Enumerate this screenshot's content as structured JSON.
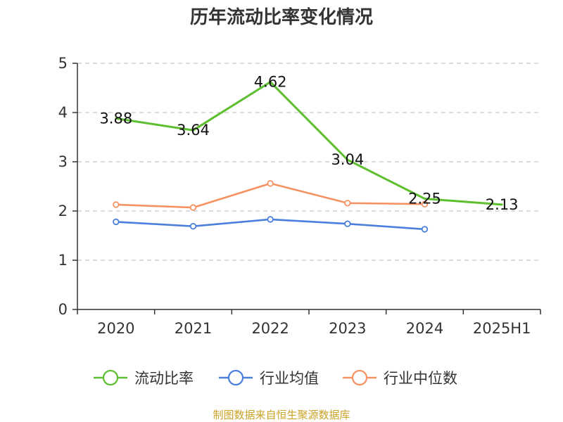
{
  "chart_data": {
    "type": "line",
    "title": "历年流动比率变化情况",
    "categories": [
      "2020",
      "2021",
      "2022",
      "2023",
      "2024",
      "2025H1"
    ],
    "ylim": [
      0,
      5
    ],
    "yticks": [
      "0",
      "1",
      "2",
      "3",
      "4",
      "5"
    ],
    "grid": true,
    "legend_position": "bottom",
    "series": [
      {
        "name": "流动比率",
        "color": "#5dbe2f",
        "values": [
          3.88,
          3.64,
          4.62,
          3.04,
          2.25,
          2.13
        ],
        "labels": [
          "3.88",
          "3.64",
          "4.62",
          "3.04",
          "2.25",
          "2.13"
        ]
      },
      {
        "name": "行业均值",
        "color": "#4a7fdb",
        "values": [
          1.78,
          1.69,
          1.83,
          1.74,
          1.63,
          null
        ]
      },
      {
        "name": "行业中位数",
        "color": "#f59262",
        "values": [
          2.13,
          2.07,
          2.56,
          2.16,
          2.14,
          null
        ]
      }
    ]
  },
  "footer": {
    "source": "制图数据来自恒生聚源数据库"
  }
}
